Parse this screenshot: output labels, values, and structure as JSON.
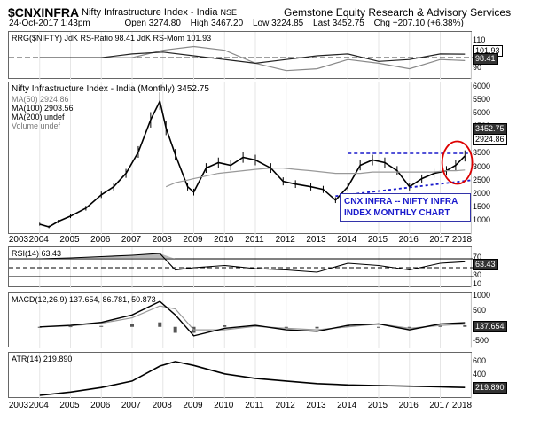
{
  "header": {
    "symbol": "$CNXINFRA",
    "name": "Nifty Infrastructure Index - India",
    "exchange": "NSE",
    "brand": "Gemstone Equity Research & Advisory Services",
    "date": "24-Oct-2017 1:43pm",
    "open": "Open 3274.80",
    "high": "High 3467.20",
    "low": "Low 3224.85",
    "last": "Last 3452.75",
    "chg": "Chg +207.10 (+6.38%)"
  },
  "colors": {
    "price": "#000000",
    "ma50": "#999999",
    "ma100": "#555555",
    "trend": "#1a1acc",
    "ellipse": "#dd0000"
  },
  "chart_data": [
    {
      "type": "line",
      "title": "RRG($NIFTY) JdK RS-Ratio 98.41 JdK RS-Mom 101.93",
      "x_years": [
        2004,
        2005,
        2006,
        2007,
        2008,
        2009,
        2010,
        2011,
        2012,
        2013,
        2014,
        2015,
        2016,
        2017,
        2017.8
      ],
      "series": [
        {
          "name": "JdK RS-Ratio 98.41",
          "values": [
            100,
            100,
            100,
            100,
            104,
            106,
            104,
            97,
            93,
            94,
            99,
            97,
            94,
            99,
            98.41
          ]
        },
        {
          "name": "JdK RS-Mom 101.93",
          "values": [
            100,
            100,
            100,
            102,
            103,
            101,
            99,
            97,
            99,
            101,
            102,
            98,
            99,
            102,
            101.93
          ]
        }
      ],
      "ylim": [
        90,
        112
      ],
      "yticks": [
        100,
        110
      ],
      "last_tags": [
        "101.93",
        "98.41"
      ]
    },
    {
      "type": "line",
      "title": "Nifty Infrastructure Index - India (Monthly) 3452.75",
      "legend": [
        "MA(50) 2924.86",
        "MA(100) 2903.56",
        "MA(200) undef",
        "Volume undef"
      ],
      "x": [
        2004.0,
        2004.3,
        2004.6,
        2005.0,
        2005.5,
        2006.0,
        2006.4,
        2006.8,
        2007.2,
        2007.6,
        2007.9,
        2008.1,
        2008.4,
        2008.8,
        2009.0,
        2009.4,
        2009.8,
        2010.2,
        2010.6,
        2011.0,
        2011.5,
        2011.9,
        2012.3,
        2012.8,
        2013.2,
        2013.6,
        2014.0,
        2014.4,
        2014.8,
        2015.2,
        2015.6,
        2016.0,
        2016.4,
        2016.8,
        2017.2,
        2017.5,
        2017.8
      ],
      "values": [
        900,
        800,
        1000,
        1200,
        1500,
        2000,
        2300,
        2800,
        3600,
        4800,
        5500,
        4500,
        3500,
        2300,
        2100,
        3000,
        3200,
        3100,
        3400,
        3300,
        3000,
        2500,
        2400,
        2300,
        2200,
        1800,
        2300,
        3100,
        3300,
        3200,
        2900,
        2300,
        2600,
        2800,
        2900,
        3100,
        3452.75
      ],
      "ma50": [
        null,
        null,
        null,
        null,
        null,
        null,
        null,
        null,
        null,
        null,
        null,
        2300,
        2450,
        2550,
        2600,
        2700,
        2800,
        2850,
        2900,
        2950,
        3000,
        3000,
        2950,
        2900,
        2850,
        2800,
        2800,
        2800,
        2850,
        2850,
        2850,
        2850,
        2850,
        2850,
        2900,
        2900,
        2924.86
      ],
      "ylim": [
        700,
        6000
      ],
      "yticks": [
        1000,
        1500,
        2000,
        2500,
        3000,
        3500,
        4000,
        4500,
        5000,
        5500,
        6000
      ],
      "last_tags": [
        "3452.75",
        "2924.86"
      ],
      "note_line1": "CNX INFRA -- NIFTY INFRA",
      "note_line2": "INDEX MONTHLY CHART"
    },
    {
      "type": "line",
      "title": "RSI(14) 63.43",
      "x": [
        2004,
        2005,
        2006,
        2007,
        2007.9,
        2008.4,
        2009,
        2010,
        2011,
        2012,
        2013,
        2014,
        2015,
        2016,
        2017,
        2017.8
      ],
      "values": [
        70,
        72,
        75,
        78,
        82,
        45,
        50,
        55,
        48,
        45,
        40,
        60,
        55,
        45,
        60,
        63.43
      ],
      "ylim": [
        10,
        90
      ],
      "yticks": [
        70,
        50,
        30,
        10
      ],
      "last_tag": "63.43"
    },
    {
      "type": "line",
      "title": "MACD(12,26,9) 137.654, 86.781, 50.873",
      "x": [
        2004,
        2005,
        2006,
        2007,
        2007.9,
        2008.4,
        2009,
        2010,
        2011,
        2012,
        2013,
        2014,
        2015,
        2016,
        2017,
        2017.8
      ],
      "series": [
        {
          "name": "MACD 137.654",
          "values": [
            0,
            50,
            150,
            400,
            850,
            400,
            -300,
            -50,
            50,
            -100,
            -150,
            50,
            100,
            -100,
            100,
            137.654
          ]
        },
        {
          "name": "Signal 86.781",
          "values": [
            0,
            30,
            120,
            300,
            700,
            600,
            -100,
            -100,
            20,
            -50,
            -100,
            0,
            100,
            -50,
            50,
            86.781
          ]
        }
      ],
      "ylim": [
        -600,
        1000
      ],
      "yticks": [
        1000,
        500,
        0,
        -500
      ],
      "last_tag": "137.654"
    },
    {
      "type": "line",
      "title": "ATR(14) 219.890",
      "x": [
        2004,
        2005,
        2006,
        2007,
        2007.9,
        2008.4,
        2009,
        2010,
        2011,
        2012,
        2013,
        2014,
        2015,
        2016,
        2017,
        2017.8
      ],
      "values": [
        100,
        150,
        220,
        320,
        550,
        620,
        560,
        430,
        360,
        320,
        280,
        260,
        250,
        240,
        230,
        219.89
      ],
      "ylim": [
        100,
        700
      ],
      "yticks": [
        600,
        400,
        200
      ],
      "last_tag": "219.890"
    }
  ],
  "xaxis_labels": [
    "2003",
    "2004",
    "2005",
    "2006",
    "2007",
    "2008",
    "2009",
    "2010",
    "2011",
    "2012",
    "2013",
    "2014",
    "2015",
    "2016",
    "2017",
    "2018"
  ]
}
